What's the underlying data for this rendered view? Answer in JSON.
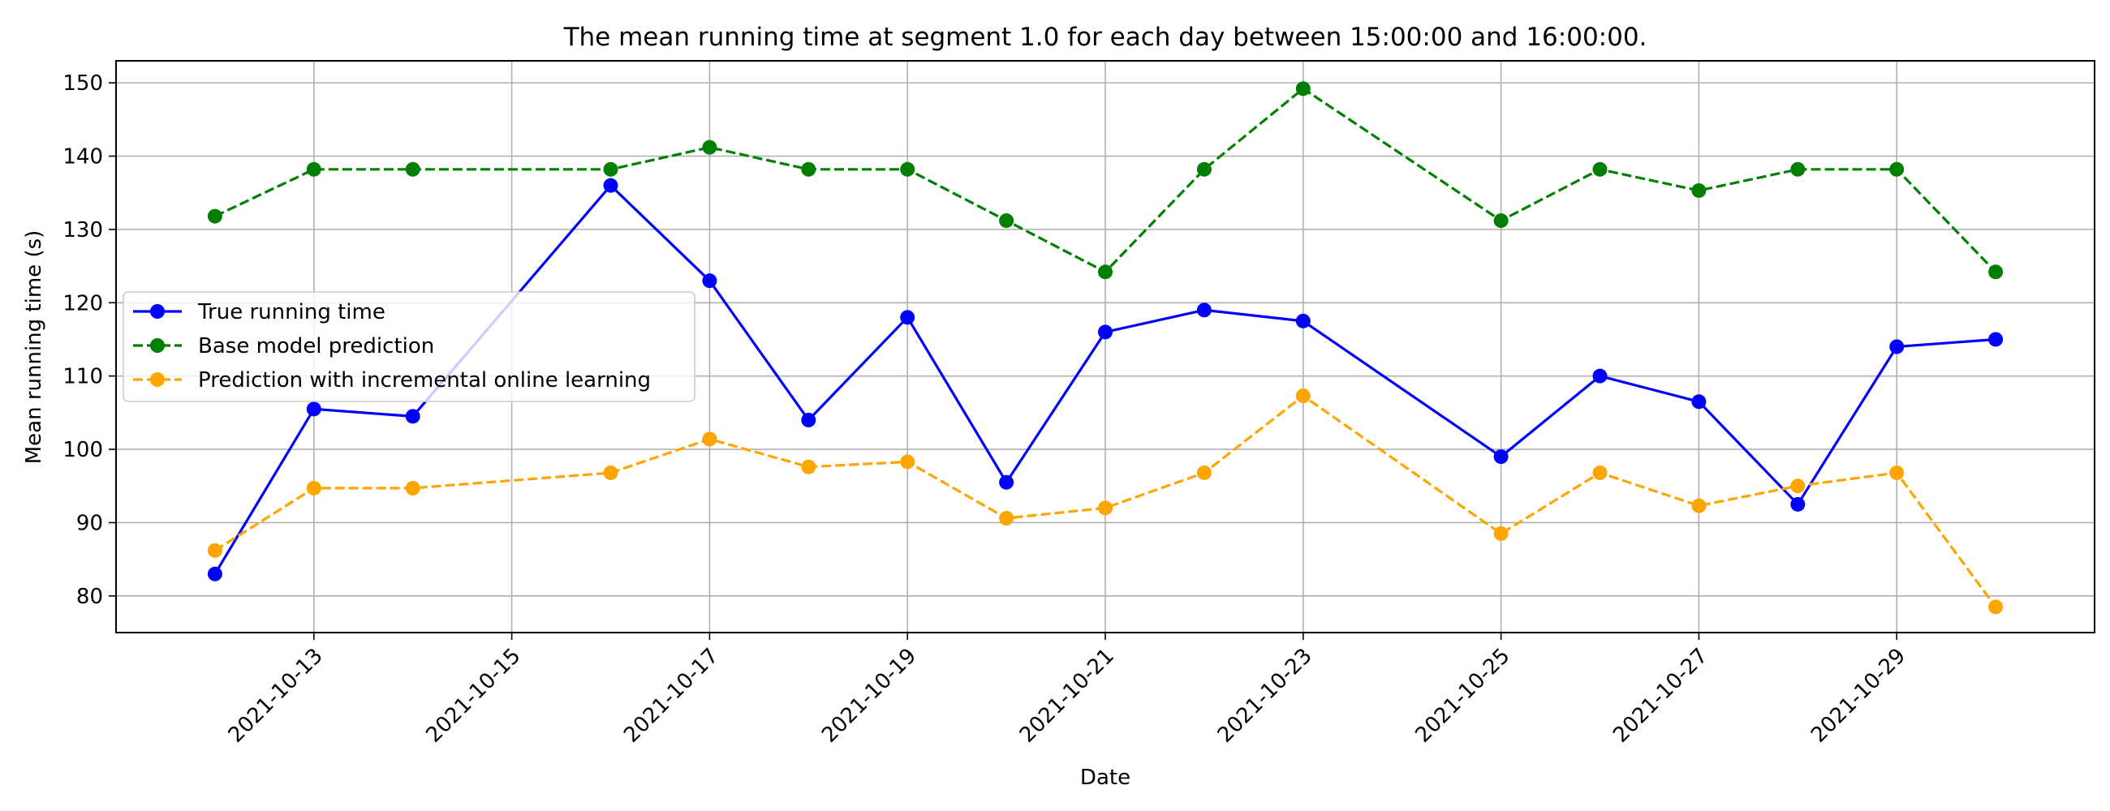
{
  "chart_data": {
    "type": "line",
    "title": "The mean running time at segment 1.0 for each day between 15:00:00 and 16:00:00.",
    "xlabel": "Date",
    "ylabel": "Mean running time (s)",
    "x_ticks": [
      "2021-10-13",
      "2021-10-15",
      "2021-10-17",
      "2021-10-19",
      "2021-10-21",
      "2021-10-23",
      "2021-10-25",
      "2021-10-27",
      "2021-10-29"
    ],
    "y_ticks": [
      80,
      90,
      100,
      110,
      120,
      130,
      140,
      150
    ],
    "xlim": [
      "2021-10-11",
      "2021-10-31"
    ],
    "ylim": [
      75,
      153
    ],
    "grid": true,
    "legend_position": "center-left",
    "x": [
      "2021-10-12",
      "2021-10-13",
      "2021-10-14",
      "2021-10-16",
      "2021-10-17",
      "2021-10-18",
      "2021-10-19",
      "2021-10-20",
      "2021-10-21",
      "2021-10-22",
      "2021-10-23",
      "2021-10-25",
      "2021-10-26",
      "2021-10-27",
      "2021-10-28",
      "2021-10-29",
      "2021-10-30"
    ],
    "series": [
      {
        "name": "True running time",
        "color": "#0000ff",
        "linestyle": "solid",
        "values": [
          83,
          105.5,
          104.5,
          136,
          123,
          104,
          118,
          95.5,
          116,
          119,
          117.5,
          99,
          110,
          106.5,
          92.5,
          114,
          115
        ]
      },
      {
        "name": "Base model prediction",
        "color": "#008000",
        "linestyle": "dashed",
        "values": [
          131.8,
          138.2,
          138.2,
          138.2,
          141.2,
          138.2,
          138.2,
          131.2,
          124.2,
          138.2,
          149.2,
          131.2,
          138.2,
          135.3,
          138.2,
          138.2,
          124.2
        ]
      },
      {
        "name": "Prediction with incremental online learning",
        "color": "#ffa500",
        "linestyle": "dashed",
        "values": [
          86.2,
          94.7,
          94.7,
          96.8,
          101.4,
          97.6,
          98.3,
          90.6,
          92,
          96.8,
          107.3,
          88.5,
          96.8,
          92.3,
          95,
          96.8,
          78.5
        ]
      }
    ]
  }
}
